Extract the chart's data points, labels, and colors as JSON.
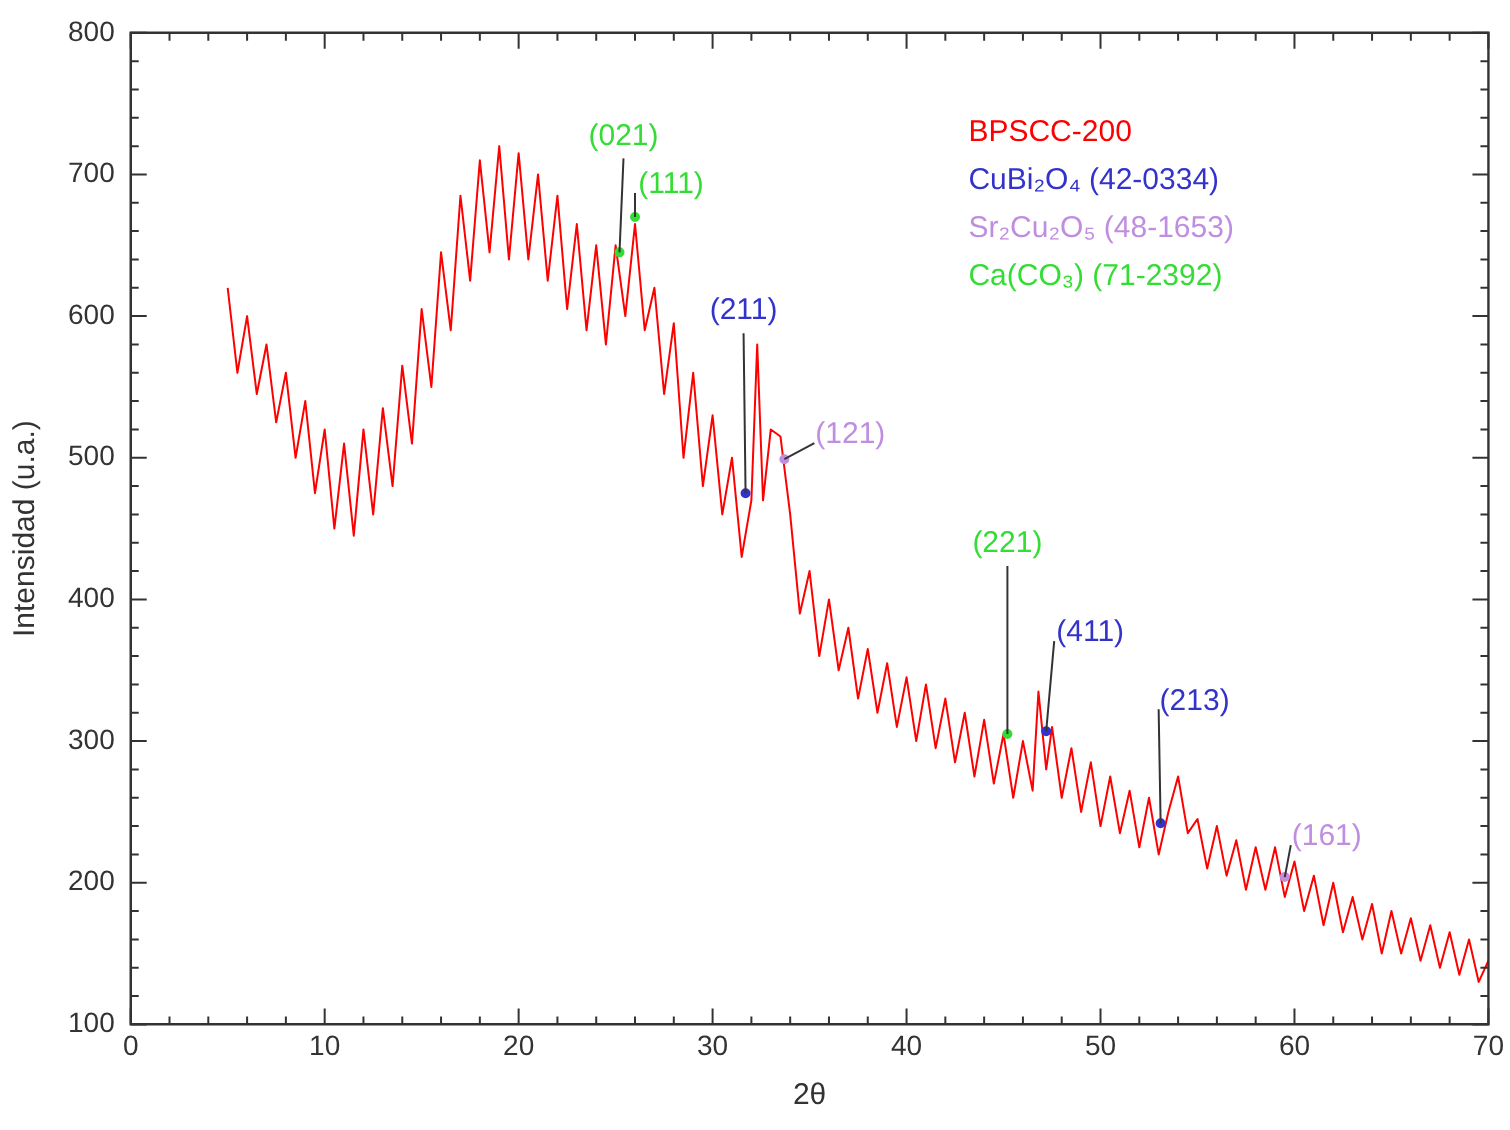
{
  "chart_data": {
    "type": "line",
    "xlabel": "2θ",
    "ylabel": "Intensidad (u.a.)",
    "xlim": [
      0,
      70
    ],
    "ylim": [
      100,
      800
    ],
    "xticks": [
      0,
      {
        "value": 2,
        "label": null
      },
      {
        "value": 4,
        "label": null
      },
      {
        "value": 6,
        "label": null
      },
      {
        "value": 8,
        "label": null
      },
      10,
      {
        "value": 12,
        "label": null
      },
      {
        "value": 14,
        "label": null
      },
      {
        "value": 16,
        "label": null
      },
      {
        "value": 18,
        "label": null
      },
      20,
      {
        "value": 22,
        "label": null
      },
      {
        "value": 24,
        "label": null
      },
      {
        "value": 26,
        "label": null
      },
      {
        "value": 28,
        "label": null
      },
      30,
      {
        "value": 32,
        "label": null
      },
      {
        "value": 34,
        "label": null
      },
      {
        "value": 36,
        "label": null
      },
      {
        "value": 38,
        "label": null
      },
      40,
      {
        "value": 42,
        "label": null
      },
      {
        "value": 44,
        "label": null
      },
      {
        "value": 46,
        "label": null
      },
      {
        "value": 48,
        "label": null
      },
      50,
      {
        "value": 52,
        "label": null
      },
      {
        "value": 54,
        "label": null
      },
      {
        "value": 56,
        "label": null
      },
      {
        "value": 58,
        "label": null
      },
      60,
      {
        "value": 62,
        "label": null
      },
      {
        "value": 64,
        "label": null
      },
      {
        "value": 66,
        "label": null
      },
      {
        "value": 68,
        "label": null
      },
      70
    ],
    "yticks": [
      100,
      {
        "value": 120,
        "label": null
      },
      {
        "value": 140,
        "label": null
      },
      {
        "value": 160,
        "label": null
      },
      {
        "value": 180,
        "label": null
      },
      200,
      {
        "value": 220,
        "label": null
      },
      {
        "value": 240,
        "label": null
      },
      {
        "value": 260,
        "label": null
      },
      {
        "value": 280,
        "label": null
      },
      300,
      {
        "value": 320,
        "label": null
      },
      {
        "value": 340,
        "label": null
      },
      {
        "value": 360,
        "label": null
      },
      {
        "value": 380,
        "label": null
      },
      400,
      {
        "value": 420,
        "label": null
      },
      {
        "value": 440,
        "label": null
      },
      {
        "value": 460,
        "label": null
      },
      {
        "value": 480,
        "label": null
      },
      500,
      {
        "value": 520,
        "label": null
      },
      {
        "value": 540,
        "label": null
      },
      {
        "value": 560,
        "label": null
      },
      {
        "value": 580,
        "label": null
      },
      600,
      {
        "value": 620,
        "label": null
      },
      {
        "value": 640,
        "label": null
      },
      {
        "value": 660,
        "label": null
      },
      {
        "value": 680,
        "label": null
      },
      700,
      {
        "value": 720,
        "label": null
      },
      {
        "value": 740,
        "label": null
      },
      {
        "value": 760,
        "label": null
      },
      {
        "value": 780,
        "label": null
      },
      800
    ],
    "grid": false,
    "legend": "top right",
    "series": [
      {
        "name": "BPSCC-200",
        "color": "#ff0000",
        "marker": "none",
        "line_style": "solid",
        "x": [
          5,
          5.5,
          6,
          6.5,
          7,
          7.5,
          8,
          8.5,
          9,
          9.5,
          10,
          10.5,
          11,
          11.5,
          12,
          12.5,
          13,
          13.5,
          14,
          14.5,
          15,
          15.5,
          16,
          16.5,
          17,
          17.5,
          18,
          18.5,
          19,
          19.5,
          20,
          20.5,
          21,
          21.5,
          22,
          22.5,
          23,
          23.5,
          24,
          24.5,
          25,
          25.5,
          26,
          26.5,
          27,
          27.5,
          28,
          28.5,
          29,
          29.5,
          30,
          30.5,
          31,
          31.5,
          32,
          32.3,
          32.6,
          33,
          33.5,
          34,
          34.5,
          35,
          35.5,
          36,
          36.5,
          37,
          37.5,
          38,
          38.5,
          39,
          39.5,
          40,
          40.5,
          41,
          41.5,
          42,
          42.5,
          43,
          43.5,
          44,
          44.5,
          45,
          45.5,
          46,
          46.5,
          46.8,
          47.2,
          47.5,
          48,
          48.5,
          49,
          49.5,
          50,
          50.5,
          51,
          51.5,
          52,
          52.5,
          53,
          53.5,
          54,
          54.5,
          55,
          55.5,
          56,
          56.5,
          57,
          57.5,
          58,
          58.5,
          59,
          59.5,
          60,
          60.5,
          61,
          61.5,
          62,
          62.5,
          63,
          63.5,
          64,
          64.5,
          65,
          65.5,
          66,
          66.5,
          67,
          67.5,
          68,
          68.5,
          69,
          69.5,
          70
        ],
        "values": [
          620,
          560,
          600,
          545,
          580,
          525,
          560,
          500,
          540,
          475,
          520,
          450,
          510,
          445,
          520,
          460,
          535,
          480,
          565,
          510,
          605,
          550,
          645,
          590,
          685,
          625,
          710,
          645,
          720,
          640,
          715,
          640,
          700,
          625,
          685,
          605,
          665,
          590,
          650,
          580,
          650,
          600,
          665,
          590,
          620,
          545,
          595,
          500,
          560,
          480,
          530,
          460,
          500,
          430,
          470,
          580,
          470,
          520,
          515,
          460,
          390,
          420,
          360,
          400,
          350,
          380,
          330,
          365,
          320,
          355,
          310,
          345,
          300,
          340,
          295,
          330,
          285,
          320,
          275,
          315,
          270,
          305,
          260,
          300,
          265,
          335,
          280,
          310,
          260,
          295,
          250,
          285,
          240,
          275,
          235,
          265,
          225,
          260,
          220,
          250,
          275,
          235,
          245,
          210,
          240,
          205,
          230,
          195,
          225,
          195,
          225,
          190,
          215,
          180,
          205,
          170,
          200,
          165,
          190,
          160,
          185,
          150,
          180,
          150,
          175,
          145,
          170,
          140,
          165,
          135,
          160,
          130,
          145
        ]
      },
      {
        "name": "CuBi₂O₄ (42-0334)",
        "type": "scatter",
        "color": "#3333cc",
        "marker": "circle",
        "x": [
          31.7,
          47.2,
          53.1
        ],
        "values": [
          475,
          307,
          242
        ]
      },
      {
        "name": "Sr₂Cu₂O₅ (48-1653)",
        "type": "scatter",
        "color": "#c08ee0",
        "marker": "circle",
        "x": [
          33.7,
          59.5
        ],
        "values": [
          499,
          204
        ]
      },
      {
        "name": "Ca(CO₃) (71-2392)",
        "type": "scatter",
        "color": "#33dd33",
        "marker": "circle",
        "x": [
          25.2,
          26.0,
          45.2
        ],
        "values": [
          645,
          670,
          305
        ]
      }
    ],
    "annotations": [
      {
        "text": "(021)",
        "x": 25.2,
        "y": 645
      },
      {
        "text": "(111)",
        "x": 26.0,
        "y": 670
      },
      {
        "text": "(211)",
        "x": 31.7,
        "y": 475
      },
      {
        "text": "(121)",
        "x": 33.7,
        "y": 499
      },
      {
        "text": "(221)",
        "x": 45.2,
        "y": 305
      },
      {
        "text": "(411)",
        "x": 47.2,
        "y": 307
      },
      {
        "text": "(213)",
        "x": 53.1,
        "y": 242
      },
      {
        "text": "(161)",
        "x": 59.5,
        "y": 204
      }
    ]
  }
}
